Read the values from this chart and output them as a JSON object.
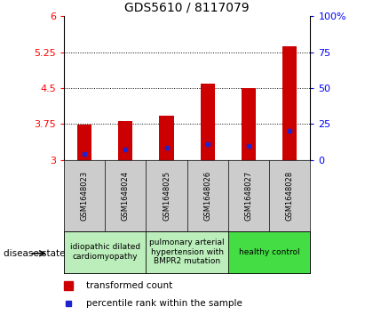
{
  "title": "GDS5610 / 8117079",
  "samples": [
    "GSM1648023",
    "GSM1648024",
    "GSM1648025",
    "GSM1648026",
    "GSM1648027",
    "GSM1648028"
  ],
  "bar_values": [
    3.73,
    3.82,
    3.92,
    4.6,
    4.5,
    5.38
  ],
  "percentile_values": [
    3.13,
    3.22,
    3.25,
    3.33,
    3.3,
    3.6
  ],
  "ylim_left": [
    3.0,
    6.0
  ],
  "yticks_left": [
    3.0,
    3.75,
    4.5,
    5.25,
    6.0
  ],
  "ytick_labels_left": [
    "3",
    "3.75",
    "4.5",
    "5.25",
    "6"
  ],
  "yticks_right_vals": [
    3.0,
    3.75,
    4.5,
    5.25,
    6.0
  ],
  "yticks_right": [
    0,
    25,
    50,
    75,
    100
  ],
  "ytick_labels_right": [
    "0",
    "25",
    "50",
    "75",
    "100%"
  ],
  "bar_color": "#cc0000",
  "dot_color": "#2222cc",
  "bar_bottom": 3.0,
  "bar_width": 0.35,
  "disease_groups": [
    {
      "label": "idiopathic dilated\ncardiomyopathy",
      "indices": [
        0,
        1
      ],
      "color": "#bbeebb"
    },
    {
      "label": "pulmonary arterial\nhypertension with\nBMPR2 mutation",
      "indices": [
        2,
        3
      ],
      "color": "#bbeebb"
    },
    {
      "label": "healthy control",
      "indices": [
        4,
        5
      ],
      "color": "#44dd44"
    }
  ],
  "legend_labels": [
    "transformed count",
    "percentile rank within the sample"
  ],
  "disease_state_label": "disease state",
  "sample_bg_color": "#cccccc",
  "plot_bg": "#ffffff",
  "title_fontsize": 10,
  "tick_fontsize": 8,
  "sample_fontsize": 6,
  "disease_fontsize": 6.5,
  "legend_fontsize": 7.5
}
